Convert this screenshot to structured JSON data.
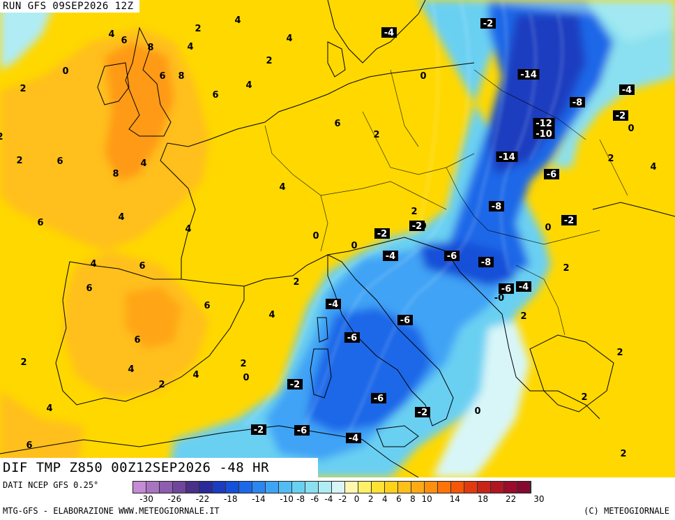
{
  "header": {
    "run_label": "RUN GFS 09SEP2026 12Z",
    "map_title": "DIF TMP Z850 00Z12SEP2026 -48 HR"
  },
  "footer": {
    "data_source": "DATI NCEP GFS 0.25°",
    "credit": "MTG-GFS - ELABORAZIONE WWW.METEOGIORNALE.IT",
    "copyright": "(C) METEOGIORNALE"
  },
  "legend": {
    "colors": [
      "#c58bd4",
      "#a974c2",
      "#8d5db0",
      "#70469c",
      "#4a3088",
      "#2a2a9a",
      "#1c3cc0",
      "#1450d8",
      "#1c68e8",
      "#2c86f0",
      "#3fa3f5",
      "#52bcf5",
      "#6ad0f2",
      "#8ae0f0",
      "#b0ecf4",
      "#d8f6f8",
      "#fff7b0",
      "#fff066",
      "#ffe233",
      "#ffd21a",
      "#ffbf1a",
      "#ffaa14",
      "#ff900e",
      "#ff740a",
      "#f55608",
      "#e23a10",
      "#c82418",
      "#b01622",
      "#9a0c2a",
      "#850a30"
    ],
    "tick_labels": [
      "-30",
      "-26",
      "-22",
      "-18",
      "-14",
      "-10",
      "-8",
      "-6",
      "-4",
      "-2",
      "0",
      "2",
      "4",
      "6",
      "8",
      "10",
      "14",
      "18",
      "22",
      "30"
    ]
  },
  "colors": {
    "land_positive": "#ffd800",
    "warm_anomaly": "#ffb81a",
    "cold_anomaly": "#2c86f0",
    "deep_cold": "#1c3cc0"
  },
  "map_labels": [
    "0",
    "4",
    "6",
    "8",
    "2",
    "4",
    "4",
    "2",
    "6",
    "8",
    "4",
    "2",
    "0",
    "6",
    "4",
    "-4",
    "-2",
    "2",
    "6",
    "8",
    "4",
    "2",
    "4",
    "-14",
    "0",
    "0",
    "2",
    "6",
    "-8",
    "-12",
    "-10",
    "-4",
    "-2",
    "0",
    "-14",
    "2",
    "4",
    "6",
    "4",
    "4",
    "-6",
    "-8",
    "2",
    "-2",
    "0",
    "0",
    "-2",
    "0",
    "-2",
    "6",
    "4",
    "-4",
    "-6",
    "-8",
    "4",
    "2",
    "2",
    "6",
    "-6",
    "-4",
    "-0",
    "-4",
    "6",
    "4",
    "2",
    "-6",
    "6",
    "-6",
    "2",
    "4",
    "2",
    "0",
    "2",
    "-2",
    "2",
    "-6",
    "2",
    "4",
    "-2",
    "0",
    "-2",
    "-6",
    "-4",
    "2",
    "6"
  ]
}
